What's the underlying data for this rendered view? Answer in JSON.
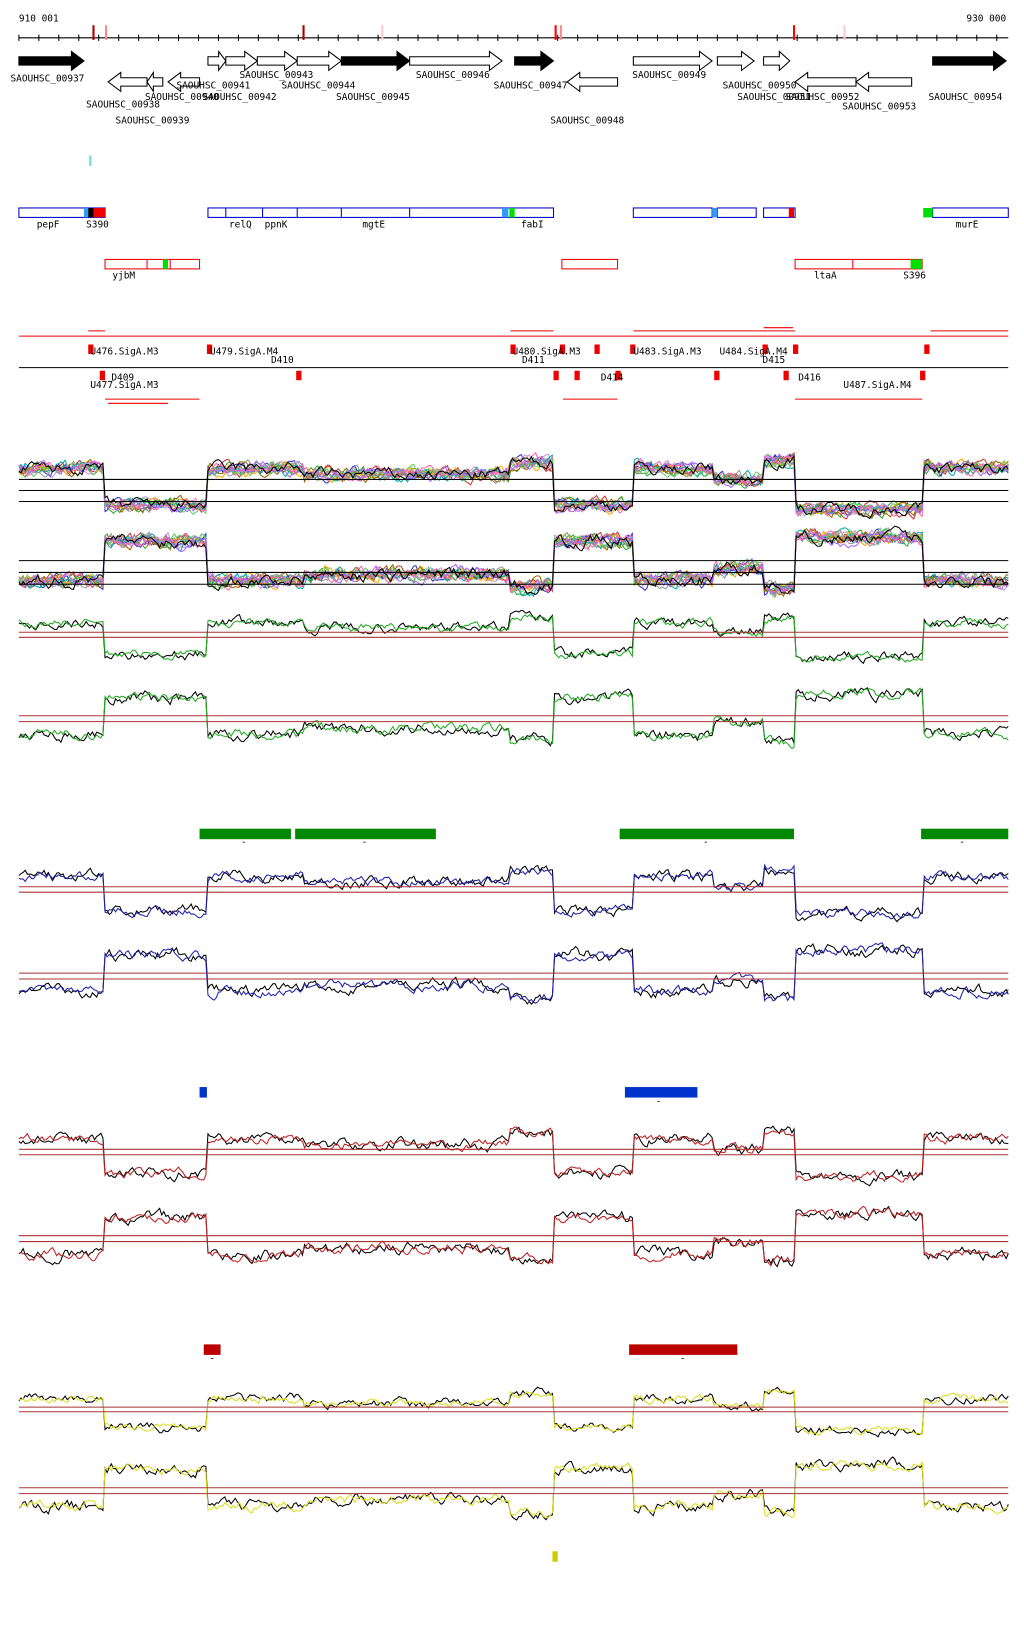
{
  "ruler": {
    "start": "910 001",
    "end": "930 000"
  },
  "genes": [
    "SAOUHSC_00937",
    "SAOUHSC_00938",
    "SAOUHSC_00939",
    "SAOUHSC_00940",
    "SAOUHSC_00941",
    "SAOUHSC_00942",
    "SAOUHSC_00943",
    "SAOUHSC_00944",
    "SAOUHSC_00945",
    "SAOUHSC_00946",
    "SAOUHSC_00947",
    "SAOUHSC_00948",
    "SAOUHSC_00949",
    "SAOUHSC_00950",
    "SAOUHSC_00951",
    "SAOUHSC_00952",
    "SAOUHSC_00953",
    "SAOUHSC_00954"
  ],
  "features": {
    "row1": [
      "pepF",
      "S390",
      "relQ",
      "ppnK",
      "mgtE",
      "fabI",
      "murE"
    ],
    "row2": [
      "yjbM",
      "ltaA",
      "S396"
    ]
  },
  "transcripts": [
    "U476.SigA.M3",
    "U477.SigA.M3",
    "D409",
    "U479.SigA.M4",
    "D410",
    "U480.SigA.M3",
    "D411",
    "D414",
    "U483.SigA.M3",
    "U484.SigA.M4",
    "D415",
    "D416",
    "U487.SigA.M4"
  ],
  "bar_marks": [
    "-",
    "-",
    "-",
    "-",
    "-",
    "-",
    "-",
    "-"
  ]
}
